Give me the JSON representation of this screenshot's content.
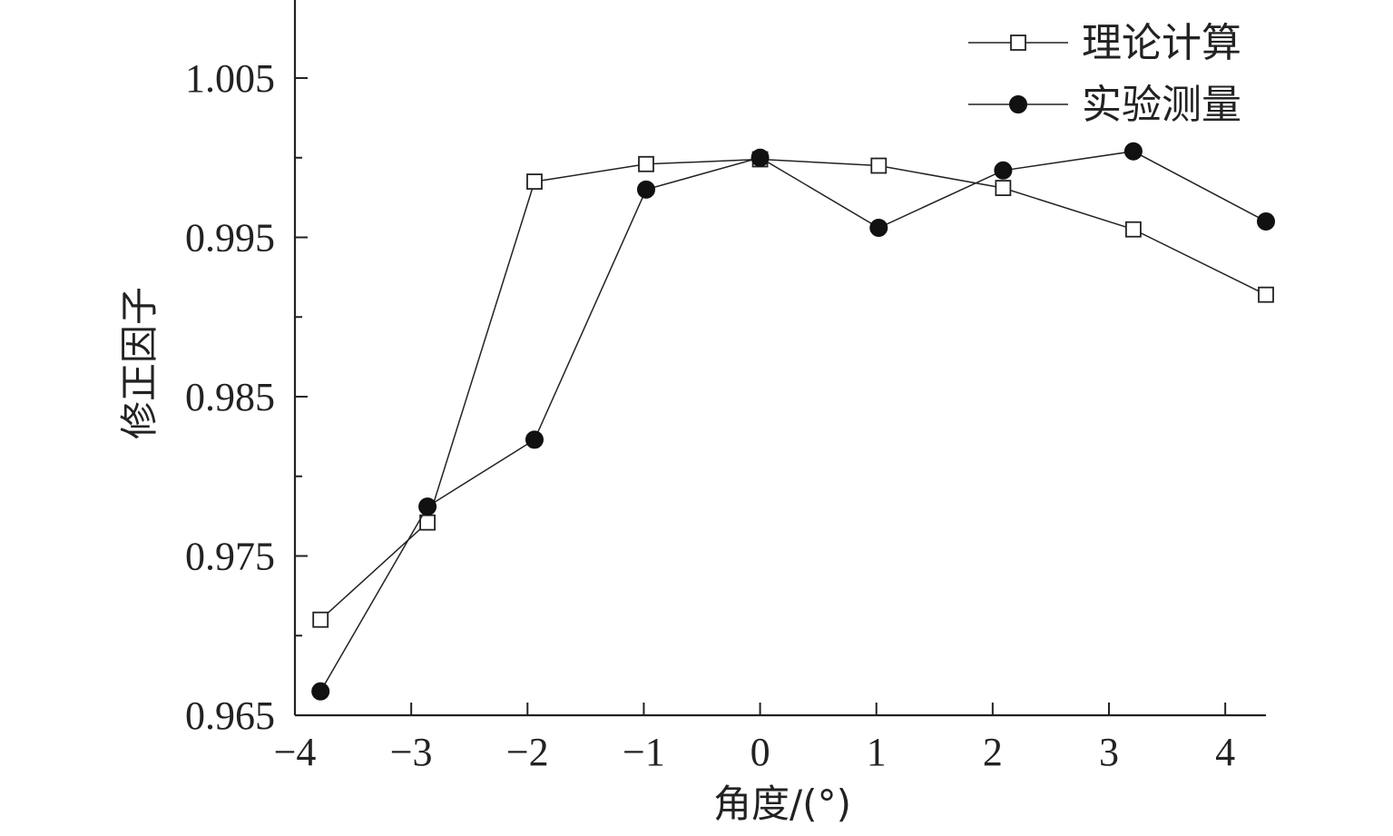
{
  "chart_data": {
    "type": "line",
    "xlabel": "角度/(°)",
    "ylabel": "修正因子",
    "xlim": [
      -4,
      4.35
    ],
    "ylim": [
      0.965,
      1.0099
    ],
    "x_ticks": [
      -4,
      -3,
      -2,
      -1,
      0,
      1,
      2,
      3,
      4
    ],
    "x_tick_labels": [
      "−4",
      "−3",
      "−2",
      "−1",
      "0",
      "1",
      "2",
      "3",
      "4"
    ],
    "y_ticks": [
      0.965,
      0.975,
      0.985,
      0.995,
      1.005
    ],
    "y_tick_labels": [
      "0.965",
      "0.975",
      "0.985",
      "0.995",
      "1.005"
    ],
    "y_minor_ticks": [
      0.97,
      0.98,
      0.99,
      1.0
    ],
    "legend_position": "top-right",
    "series": [
      {
        "name": "理论计算",
        "marker": "open-square",
        "color": "#222222",
        "x": [
          -3.78,
          -2.86,
          -1.94,
          -0.98,
          0.0,
          1.02,
          2.09,
          3.21,
          4.35
        ],
        "y": [
          0.971,
          0.9771,
          0.9985,
          0.9996,
          0.9999,
          0.9995,
          0.9981,
          0.9955,
          0.9914
        ]
      },
      {
        "name": "实验测量",
        "marker": "filled-circle",
        "color": "#222222",
        "x": [
          -3.78,
          -2.86,
          -1.94,
          -0.98,
          0.0,
          1.02,
          2.09,
          3.21,
          4.35
        ],
        "y": [
          0.9665,
          0.9781,
          0.9823,
          0.998,
          1.0,
          0.9956,
          0.9992,
          1.0004,
          0.996
        ]
      }
    ]
  }
}
